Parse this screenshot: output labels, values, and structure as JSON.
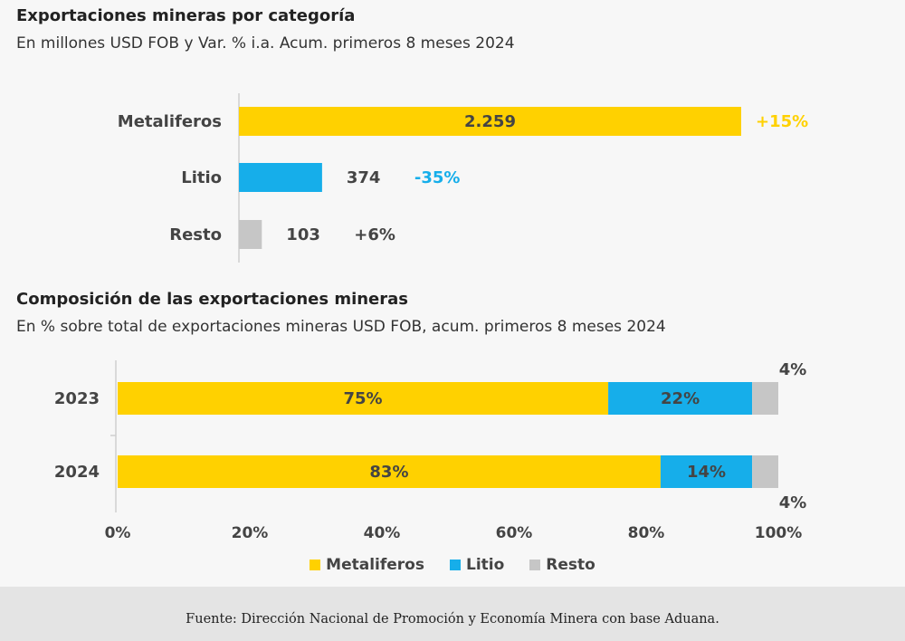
{
  "colors": {
    "metaliferos": "#ffd100",
    "litio": "#16aeea",
    "resto": "#c6c6c6",
    "dark_text": "#444444"
  },
  "chart_data": [
    {
      "type": "bar",
      "orientation": "horizontal",
      "title": "Exportaciones mineras por categoría",
      "subtitle": "En millones USD FOB y Var. % i.a. Acum. primeros 8 meses 2024",
      "categories": [
        "Metaliferos",
        "Litio",
        "Resto"
      ],
      "values": [
        2259,
        374,
        103
      ],
      "value_labels": [
        "2.259",
        "374",
        "103"
      ],
      "change_labels": [
        "+15%",
        "-35%",
        "+6%"
      ],
      "xlim": [
        0,
        2259
      ]
    },
    {
      "type": "bar",
      "orientation": "horizontal",
      "stacked": true,
      "title": "Composición de las exportaciones mineras",
      "subtitle": "En % sobre total de exportaciones mineras USD FOB, acum. primeros 8 meses 2024",
      "categories": [
        "2023",
        "2024"
      ],
      "series": [
        {
          "name": "Metaliferos",
          "values": [
            75,
            83
          ],
          "labels": [
            "75%",
            "83%"
          ]
        },
        {
          "name": "Litio",
          "values": [
            22,
            14
          ],
          "labels": [
            "22%",
            "14%"
          ]
        },
        {
          "name": "Resto",
          "values": [
            4,
            4
          ],
          "labels": [
            "4%",
            "4%"
          ]
        }
      ],
      "xlim": [
        0,
        100
      ],
      "x_ticks": [
        "0%",
        "20%",
        "40%",
        "60%",
        "80%",
        "100%"
      ],
      "legend_position": "bottom"
    }
  ],
  "footer": {
    "source": "Fuente: Dirección Nacional de Promoción y Economía Minera con base Aduana."
  }
}
